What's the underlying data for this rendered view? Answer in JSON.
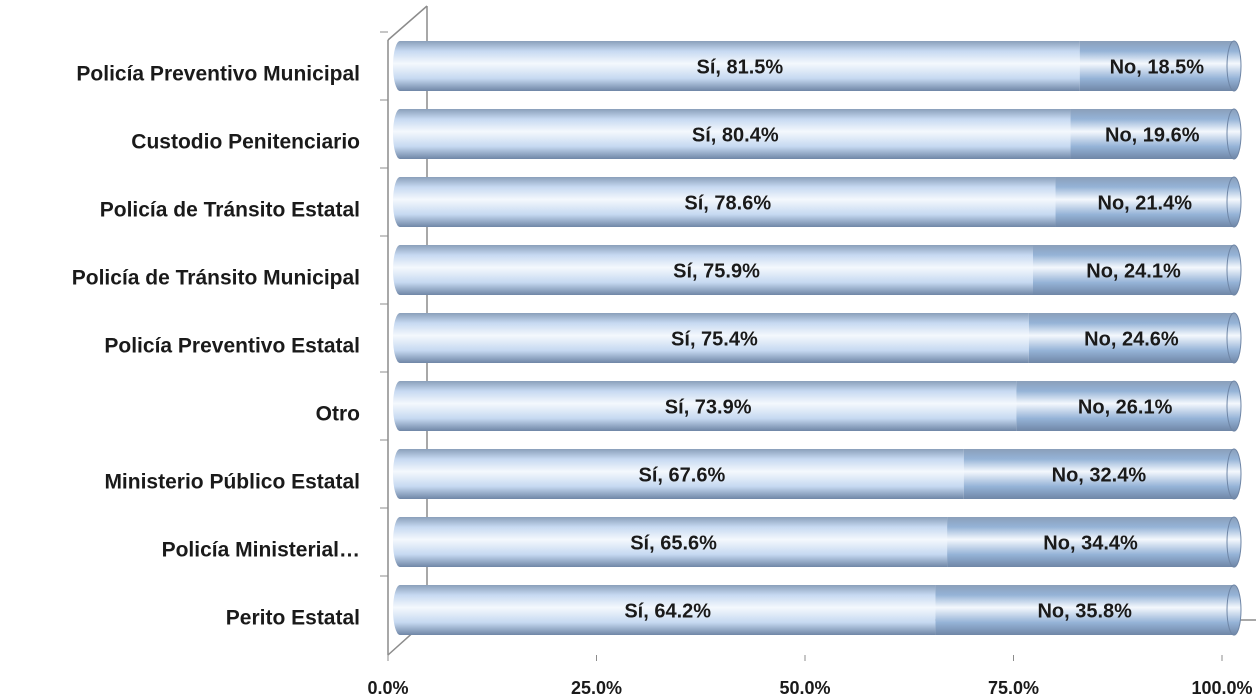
{
  "chart_data": {
    "type": "stacked-bar-horizontal",
    "categories": [
      "Policía Preventivo Municipal",
      "Custodio Penitenciario",
      "Policía de Tránsito Estatal",
      "Policía de Tránsito Municipal",
      "Policía Preventivo Estatal",
      "Otro",
      "Ministerio Público Estatal",
      "Policía Ministerial…",
      "Perito Estatal"
    ],
    "series": [
      {
        "name": "Sí",
        "color": "#c6d9f1",
        "values": [
          81.5,
          80.4,
          78.6,
          75.9,
          75.4,
          73.9,
          67.6,
          65.6,
          64.2
        ],
        "value_labels": [
          "Sí, 81.5%",
          "Sí, 80.4%",
          "Sí, 78.6%",
          "Sí, 75.9%",
          "Sí, 75.4%",
          "Sí, 73.9%",
          "Sí, 67.6%",
          "Sí, 65.6%",
          "Sí, 64.2%"
        ]
      },
      {
        "name": "No",
        "color": "#95b3d7",
        "values": [
          18.5,
          19.6,
          21.4,
          24.1,
          24.6,
          26.1,
          32.4,
          34.4,
          35.8
        ],
        "value_labels": [
          "No, 18.5%",
          "No, 19.6%",
          "No, 21.4%",
          "No, 24.1%",
          "No, 24.6%",
          "No, 26.1%",
          "No, 32.4%",
          "No, 34.4%",
          "No, 35.8%"
        ]
      }
    ],
    "xlim": [
      0,
      100
    ],
    "xticks": [
      {
        "value": 0,
        "label": "0.0%"
      },
      {
        "value": 25,
        "label": "25.0%"
      },
      {
        "value": 50,
        "label": "50.0%"
      },
      {
        "value": 75,
        "label": "75.0%"
      },
      {
        "value": 100,
        "label": "100.0%"
      }
    ]
  }
}
